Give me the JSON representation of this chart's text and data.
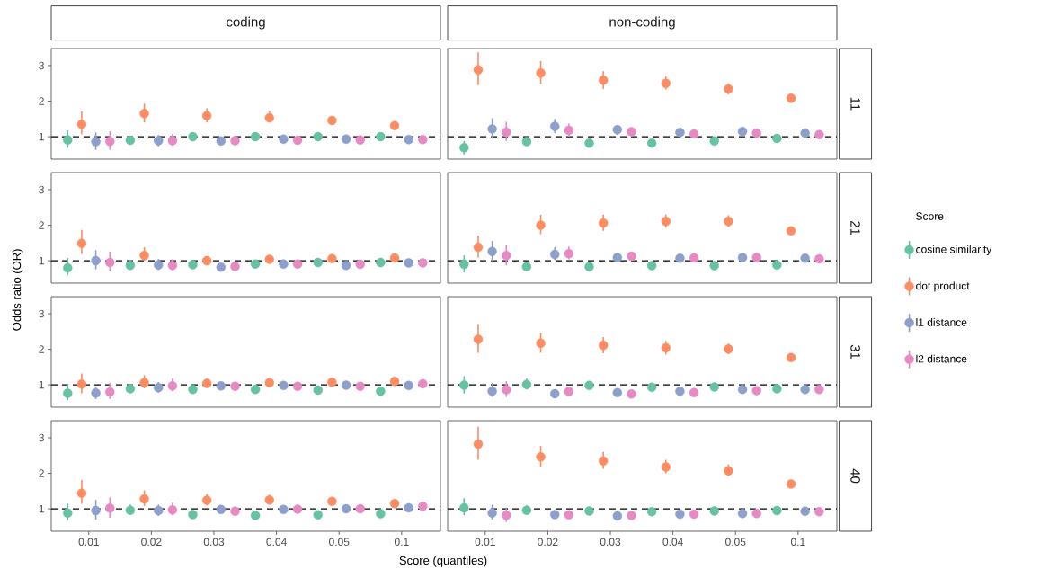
{
  "chart_data": [
    {
      "type": "scatter",
      "title": "coding",
      "categories": [
        "0.01",
        "0.02",
        "0.03",
        "0.04",
        "0.05",
        "0.1"
      ],
      "ylim": [
        0.37,
        3.48
      ],
      "yticks": [
        1,
        2,
        3
      ],
      "marker": "circle",
      "tick_labels": "y",
      "ref_lines": [
        {
          "axis": "y",
          "value": 1,
          "color": "#000000",
          "line_style": "dashed"
        }
      ],
      "series": [
        {
          "color": "#66c2a5",
          "values": [
            0.91,
            0.9,
            1.0,
            1.0,
            1.0,
            1.0
          ],
          "errors": [
            [
              0.69,
              1.18
            ],
            null,
            null,
            null,
            null,
            null
          ]
        },
        {
          "color": "#fc8d62",
          "values": [
            1.35,
            1.65,
            1.59,
            1.53,
            1.46,
            1.31
          ],
          "errors": [
            [
              1.07,
              1.71
            ],
            [
              1.4,
              1.93
            ],
            [
              1.4,
              1.8
            ],
            [
              1.4,
              1.71
            ],
            [
              1.38,
              1.55
            ],
            null
          ]
        },
        {
          "color": "#8da0cb",
          "values": [
            0.86,
            0.89,
            0.88,
            0.93,
            0.93,
            0.92
          ],
          "errors": [
            [
              0.63,
              1.12
            ],
            [
              0.73,
              1.05
            ],
            null,
            null,
            null,
            null
          ]
        },
        {
          "color": "#e78ac3",
          "values": [
            0.87,
            0.89,
            0.89,
            0.9,
            0.91,
            0.92
          ],
          "errors": [
            [
              0.63,
              1.15
            ],
            [
              0.75,
              1.08
            ],
            null,
            null,
            null,
            null
          ]
        }
      ]
    },
    {
      "type": "scatter",
      "title": "non-coding",
      "y2label": "11",
      "categories": [
        "0.01",
        "0.02",
        "0.03",
        "0.04",
        "0.05",
        "0.1"
      ],
      "ylim": [
        0.37,
        3.48
      ],
      "yticks": [
        1,
        2,
        3
      ],
      "marker": "circle",
      "tick_labels": false,
      "ref_lines": [
        {
          "axis": "y",
          "value": 1,
          "color": "#000000",
          "line_style": "dashed"
        }
      ],
      "series": [
        {
          "color": "#66c2a5",
          "values": [
            0.69,
            0.86,
            0.82,
            0.82,
            0.88,
            0.95
          ],
          "errors": [
            [
              0.5,
              0.88
            ],
            null,
            null,
            null,
            null,
            null
          ]
        },
        {
          "color": "#fc8d62",
          "values": [
            2.88,
            2.79,
            2.59,
            2.5,
            2.34,
            2.08
          ],
          "errors": [
            [
              2.45,
              3.37
            ],
            [
              2.48,
              3.13
            ],
            [
              2.34,
              2.84
            ],
            [
              2.33,
              2.7
            ],
            [
              2.19,
              2.5
            ],
            null
          ]
        },
        {
          "color": "#8da0cb",
          "values": [
            1.22,
            1.29,
            1.2,
            1.12,
            1.15,
            1.1
          ],
          "errors": [
            [
              0.97,
              1.52
            ],
            [
              1.1,
              1.5
            ],
            [
              1.05,
              1.32
            ],
            null,
            null,
            null
          ]
        },
        {
          "color": "#e78ac3",
          "values": [
            1.13,
            1.18,
            1.14,
            1.08,
            1.1,
            1.06
          ],
          "errors": [
            [
              0.88,
              1.42
            ],
            [
              1.0,
              1.37
            ],
            null,
            null,
            null,
            null
          ]
        }
      ]
    },
    {
      "type": "scatter",
      "ylabel": "Odds ratio (OR)",
      "categories": [
        "0.01",
        "0.02",
        "0.03",
        "0.04",
        "0.05",
        "0.1"
      ],
      "ylim": [
        0.37,
        3.48
      ],
      "yticks": [
        1,
        2,
        3
      ],
      "marker": "circle",
      "tick_labels": "y",
      "ref_lines": [
        {
          "axis": "y",
          "value": 1,
          "color": "#000000",
          "line_style": "dashed"
        }
      ],
      "series": [
        {
          "color": "#66c2a5",
          "values": [
            0.8,
            0.87,
            0.89,
            0.91,
            0.95,
            0.95
          ],
          "errors": [
            [
              0.59,
              1.08
            ],
            [
              0.74,
              1.02
            ],
            null,
            null,
            null,
            null
          ]
        },
        {
          "color": "#fc8d62",
          "values": [
            1.49,
            1.15,
            1.0,
            1.04,
            1.06,
            1.08
          ],
          "errors": [
            [
              1.19,
              1.87
            ],
            [
              1.0,
              1.38
            ],
            null,
            null,
            null,
            null
          ]
        },
        {
          "color": "#8da0cb",
          "values": [
            1.0,
            0.88,
            0.82,
            0.91,
            0.87,
            0.94
          ],
          "errors": [
            [
              0.76,
              1.3
            ],
            [
              0.74,
              1.05
            ],
            null,
            null,
            null,
            null
          ]
        },
        {
          "color": "#e78ac3",
          "values": [
            0.95,
            0.87,
            0.84,
            0.91,
            0.9,
            0.94
          ],
          "errors": [
            [
              0.7,
              1.26
            ],
            [
              0.73,
              1.04
            ],
            null,
            null,
            null,
            null
          ]
        }
      ]
    },
    {
      "type": "scatter",
      "y2label": "21",
      "legend_title": "Score",
      "legend": "right",
      "categories": [
        "0.01",
        "0.02",
        "0.03",
        "0.04",
        "0.05",
        "0.1"
      ],
      "ylim": [
        0.37,
        3.48
      ],
      "yticks": [
        1,
        2,
        3
      ],
      "marker": "circle",
      "tick_labels": false,
      "ref_lines": [
        {
          "axis": "y",
          "value": 1,
          "color": "#000000",
          "line_style": "dashed"
        }
      ],
      "series": [
        {
          "name": "cosine similarity",
          "color": "#66c2a5",
          "values": [
            0.9,
            0.83,
            0.83,
            0.86,
            0.86,
            0.88
          ],
          "errors": [
            [
              0.67,
              1.15
            ],
            null,
            null,
            null,
            null,
            null
          ]
        },
        {
          "name": "dot product",
          "color": "#fc8d62",
          "values": [
            1.38,
            2.0,
            2.06,
            2.11,
            2.11,
            1.84
          ],
          "errors": [
            [
              1.09,
              1.71
            ],
            [
              1.75,
              2.29
            ],
            [
              1.84,
              2.3
            ],
            [
              1.93,
              2.3
            ],
            [
              1.95,
              2.28
            ],
            null
          ]
        },
        {
          "name": "l1 distance",
          "color": "#8da0cb",
          "values": [
            1.26,
            1.18,
            1.09,
            1.07,
            1.09,
            1.07
          ],
          "errors": [
            [
              0.99,
              1.56
            ],
            [
              1.02,
              1.38
            ],
            null,
            null,
            null,
            null
          ]
        },
        {
          "name": "l2 distance",
          "color": "#e78ac3",
          "values": [
            1.15,
            1.2,
            1.13,
            1.08,
            1.09,
            1.05
          ],
          "errors": [
            [
              0.87,
              1.46
            ],
            [
              1.04,
              1.4
            ],
            null,
            null,
            null,
            null
          ]
        }
      ]
    },
    {
      "type": "scatter",
      "categories": [
        "0.01",
        "0.02",
        "0.03",
        "0.04",
        "0.05",
        "0.1"
      ],
      "ylim": [
        0.37,
        3.48
      ],
      "yticks": [
        1,
        2,
        3
      ],
      "marker": "circle",
      "tick_labels": "y",
      "ref_lines": [
        {
          "axis": "y",
          "value": 1,
          "color": "#000000",
          "line_style": "dashed"
        }
      ],
      "series": [
        {
          "color": "#66c2a5",
          "values": [
            0.76,
            0.89,
            0.87,
            0.87,
            0.85,
            0.82
          ],
          "errors": [
            [
              0.57,
              1.02
            ],
            [
              0.78,
              1.03
            ],
            null,
            null,
            null,
            null
          ]
        },
        {
          "color": "#fc8d62",
          "values": [
            1.02,
            1.06,
            1.04,
            1.06,
            1.07,
            1.1
          ],
          "errors": [
            [
              0.76,
              1.32
            ],
            [
              0.9,
              1.27
            ],
            [
              0.93,
              1.18
            ],
            null,
            null,
            null
          ]
        },
        {
          "color": "#8da0cb",
          "values": [
            0.77,
            0.92,
            0.97,
            0.98,
            0.99,
            0.98
          ],
          "errors": [
            [
              0.6,
              0.93
            ],
            [
              0.78,
              1.08
            ],
            null,
            null,
            null,
            null
          ]
        },
        {
          "color": "#e78ac3",
          "values": [
            0.8,
            0.97,
            0.96,
            0.96,
            0.96,
            1.03
          ],
          "errors": [
            [
              0.6,
              1.05
            ],
            [
              0.82,
              1.18
            ],
            null,
            null,
            null,
            null
          ]
        }
      ]
    },
    {
      "type": "scatter",
      "y2label": "31",
      "categories": [
        "0.01",
        "0.02",
        "0.03",
        "0.04",
        "0.05",
        "0.1"
      ],
      "ylim": [
        0.37,
        3.48
      ],
      "yticks": [
        1,
        2,
        3
      ],
      "marker": "circle",
      "tick_labels": false,
      "ref_lines": [
        {
          "axis": "y",
          "value": 1,
          "color": "#000000",
          "line_style": "dashed"
        }
      ],
      "series": [
        {
          "color": "#66c2a5",
          "values": [
            0.99,
            1.01,
            0.98,
            0.93,
            0.94,
            0.89
          ],
          "errors": [
            [
              0.76,
              1.24
            ],
            [
              0.87,
              1.18
            ],
            null,
            null,
            null,
            null
          ]
        },
        {
          "color": "#fc8d62",
          "values": [
            2.28,
            2.17,
            2.11,
            2.04,
            2.01,
            1.77
          ],
          "errors": [
            [
              1.9,
              2.71
            ],
            [
              1.9,
              2.46
            ],
            [
              1.89,
              2.34
            ],
            [
              1.85,
              2.23
            ],
            [
              1.86,
              2.16
            ],
            null
          ]
        },
        {
          "color": "#8da0cb",
          "values": [
            0.82,
            0.75,
            0.78,
            0.82,
            0.87,
            0.87
          ],
          "errors": [
            [
              0.66,
              1.06
            ],
            null,
            null,
            null,
            null,
            null
          ]
        },
        {
          "color": "#e78ac3",
          "values": [
            0.86,
            0.81,
            0.74,
            0.78,
            0.84,
            0.87
          ],
          "errors": [
            [
              0.66,
              1.1
            ],
            null,
            null,
            null,
            null,
            null
          ]
        }
      ]
    },
    {
      "type": "scatter",
      "xlabel": "Score (quantiles)",
      "categories": [
        "0.01",
        "0.02",
        "0.03",
        "0.04",
        "0.05",
        "0.1"
      ],
      "ylim": [
        0.37,
        3.48
      ],
      "yticks": [
        1,
        2,
        3
      ],
      "marker": "circle",
      "ref_lines": [
        {
          "axis": "y",
          "value": 1,
          "color": "#000000",
          "line_style": "dashed"
        }
      ],
      "series": [
        {
          "color": "#66c2a5",
          "values": [
            0.88,
            0.96,
            0.84,
            0.81,
            0.83,
            0.86
          ],
          "errors": [
            [
              0.68,
              1.15
            ],
            [
              0.84,
              1.12
            ],
            null,
            null,
            null,
            null
          ]
        },
        {
          "color": "#fc8d62",
          "values": [
            1.44,
            1.28,
            1.24,
            1.25,
            1.21,
            1.15
          ],
          "errors": [
            [
              1.14,
              1.82
            ],
            [
              1.08,
              1.52
            ],
            [
              1.1,
              1.42
            ],
            [
              1.12,
              1.4
            ],
            null,
            null
          ]
        },
        {
          "color": "#8da0cb",
          "values": [
            0.95,
            0.95,
            0.98,
            0.98,
            1.0,
            1.03
          ],
          "errors": [
            [
              0.7,
              1.25
            ],
            [
              0.8,
              1.12
            ],
            null,
            null,
            null,
            null
          ]
        },
        {
          "color": "#e78ac3",
          "values": [
            1.02,
            0.97,
            0.93,
            0.99,
            1.0,
            1.07
          ],
          "errors": [
            [
              0.75,
              1.32
            ],
            [
              0.82,
              1.17
            ],
            null,
            null,
            null,
            null
          ]
        }
      ]
    },
    {
      "type": "scatter",
      "y2label": "40",
      "categories": [
        "0.01",
        "0.02",
        "0.03",
        "0.04",
        "0.05",
        "0.1"
      ],
      "ylim": [
        0.37,
        3.48
      ],
      "yticks": [
        1,
        2,
        3
      ],
      "marker": "circle",
      "tick_labels": "x",
      "ref_lines": [
        {
          "axis": "y",
          "value": 1,
          "color": "#000000",
          "line_style": "dashed"
        }
      ],
      "series": [
        {
          "color": "#66c2a5",
          "values": [
            1.03,
            0.96,
            0.94,
            0.92,
            0.94,
            0.95
          ],
          "errors": [
            [
              0.82,
              1.3
            ],
            [
              0.86,
              1.1
            ],
            null,
            null,
            null,
            null
          ]
        },
        {
          "color": "#fc8d62",
          "values": [
            2.82,
            2.46,
            2.35,
            2.18,
            2.07,
            1.7
          ],
          "errors": [
            [
              2.38,
              3.31
            ],
            [
              2.17,
              2.77
            ],
            [
              2.13,
              2.6
            ],
            [
              2.0,
              2.38
            ],
            [
              1.92,
              2.25
            ],
            null
          ]
        },
        {
          "color": "#8da0cb",
          "values": [
            0.88,
            0.84,
            0.8,
            0.85,
            0.87,
            0.93
          ],
          "errors": [
            [
              0.7,
              1.12
            ],
            null,
            null,
            null,
            null,
            null
          ]
        },
        {
          "color": "#e78ac3",
          "values": [
            0.82,
            0.83,
            0.81,
            0.85,
            0.87,
            0.92
          ],
          "errors": [
            [
              0.63,
              1.0
            ],
            null,
            null,
            null,
            null,
            null
          ]
        }
      ]
    }
  ]
}
